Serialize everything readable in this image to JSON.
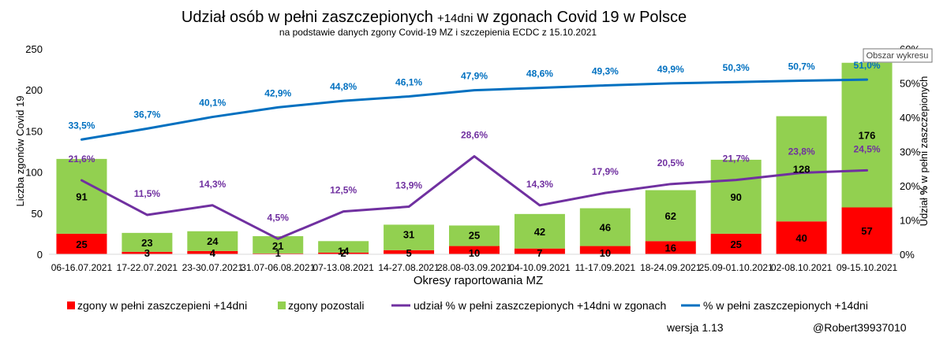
{
  "chart_data": {
    "type": "bar",
    "title_main": "Udział osób w pełni zaszczepionych",
    "title_small": "+14dni",
    "title_end": "w zgonach Covid 19 w Polsce",
    "subtitle": "na podstawie danych zgony Covid-19 MZ i szczepienia ECDC z 15.10.2021",
    "xlabel": "Okresy raportowania MZ",
    "ylabel_left": "Liczba zgonów Covid 19",
    "ylabel_right_pre": "Udział ",
    "ylabel_right_pct": "%",
    "ylabel_right_post": " w pełni zaszczepionych",
    "ylim_left": [
      0,
      250
    ],
    "yticks_left": [
      "0",
      "50",
      "100",
      "150",
      "200",
      "250"
    ],
    "ylim_right": [
      0,
      60
    ],
    "yticks_right": [
      "0%",
      "10%",
      "20%",
      "30%",
      "40%",
      "50%",
      "60%"
    ],
    "grid": false,
    "legend_position": "bottom",
    "categories": [
      "06-16.07.2021",
      "17-22.07.2021",
      "23-30.07.2021",
      "31.07-06.08.2021",
      "07-13.08.2021",
      "14-27.08.2021",
      "28.08-03.09.2021",
      "04-10.09.2021",
      "11-17.09.2021",
      "18-24.09.2021",
      "25.09-01.10.2021",
      "02-08.10.2021",
      "09-15.10.2021"
    ],
    "series": [
      {
        "name": "zgony w pełni zaszczepieni +14dni",
        "kind": "stacked-bar",
        "color": "#ff0000",
        "values": [
          25,
          3,
          4,
          1,
          2,
          5,
          10,
          7,
          10,
          16,
          25,
          40,
          57
        ],
        "labels": [
          "25",
          "3",
          "4",
          "1",
          "2",
          "5",
          "10",
          "7",
          "10",
          "16",
          "25",
          "40",
          "57"
        ]
      },
      {
        "name": "zgony pozostali",
        "kind": "stacked-bar",
        "color": "#92d050",
        "values": [
          91,
          23,
          24,
          21,
          14,
          31,
          25,
          42,
          46,
          62,
          90,
          128,
          176
        ],
        "labels": [
          "91",
          "23",
          "24",
          "21",
          "14",
          "31",
          "25",
          "42",
          "46",
          "62",
          "90",
          "128",
          "176"
        ]
      },
      {
        "name": "udział % w pełni zaszczepionych +14dni w zgonach",
        "kind": "line",
        "axis": "right",
        "color": "#7030a0",
        "values": [
          21.6,
          11.5,
          14.3,
          4.5,
          12.5,
          13.9,
          28.6,
          14.3,
          17.9,
          20.5,
          21.7,
          23.8,
          24.5
        ],
        "labels": [
          "21,6%",
          "11,5%",
          "14,3%",
          "4,5%",
          "12,5%",
          "13,9%",
          "28,6%",
          "14,3%",
          "17,9%",
          "20,5%",
          "21,7%",
          "23,8%",
          "24,5%"
        ]
      },
      {
        "name": "% w pełni zaszczepionych +14dni",
        "kind": "line",
        "axis": "right",
        "color": "#0070c0",
        "values": [
          33.5,
          36.7,
          40.1,
          42.9,
          44.8,
          46.1,
          47.9,
          48.6,
          49.3,
          49.9,
          50.3,
          50.7,
          51.0
        ],
        "labels": [
          "33,5%",
          "36,7%",
          "40,1%",
          "42,9%",
          "44,8%",
          "46,1%",
          "47,9%",
          "48,6%",
          "49,3%",
          "49,9%",
          "50,3%",
          "50,7%",
          "51,0%"
        ]
      }
    ],
    "footer_version": "wersja 1.13",
    "footer_author": "@Robert39937010",
    "tooltip": "Obszar wykresu"
  }
}
